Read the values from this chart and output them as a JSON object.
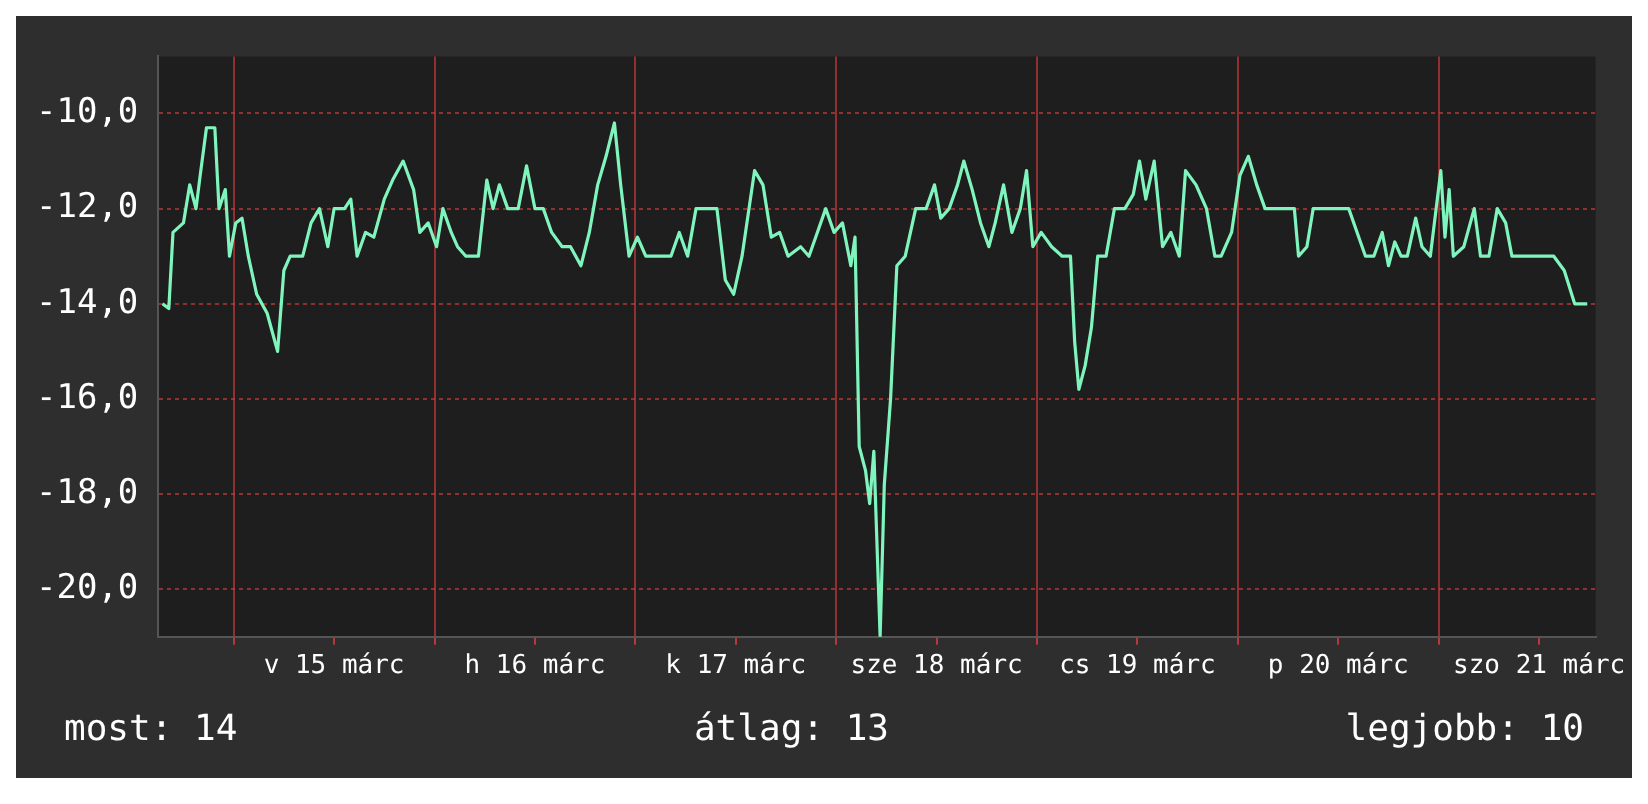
{
  "chart_data": {
    "type": "line",
    "x": [
      "--03-14T15:30",
      "--03-14T16:15",
      "--03-14T16:45",
      "--03-14T18:00",
      "--03-14T18:45",
      "--03-14T19:30",
      "--03-14T20:00",
      "--03-14T20:45",
      "--03-14T21:45",
      "--03-14T22:15",
      "--03-14T23:00",
      "--03-14T23:30",
      "--03-15T00:15",
      "--03-15T01:00",
      "--03-15T01:45",
      "--03-15T02:45",
      "--03-15T04:00",
      "--03-15T05:15",
      "--03-15T06:00",
      "--03-15T06:45",
      "--03-15T08:15",
      "--03-15T09:15",
      "--03-15T10:15",
      "--03-15T11:15",
      "--03-15T12:00",
      "--03-15T13:15",
      "--03-15T14:00",
      "--03-15T14:45",
      "--03-15T15:45",
      "--03-15T16:45",
      "--03-15T18:00",
      "--03-15T19:00",
      "--03-15T20:15",
      "--03-15T21:30",
      "--03-15T22:15",
      "--03-15T23:15",
      "--03-16T00:15",
      "--03-16T01:00",
      "--03-16T02:00",
      "--03-16T02:45",
      "--03-16T03:45",
      "--03-16T05:15",
      "--03-16T06:15",
      "--03-16T07:00",
      "--03-16T07:45",
      "--03-16T08:45",
      "--03-16T10:00",
      "--03-16T11:00",
      "--03-16T12:00",
      "--03-16T13:00",
      "--03-16T14:00",
      "--03-16T15:15",
      "--03-16T16:15",
      "--03-16T17:30",
      "--03-16T18:30",
      "--03-16T19:30",
      "--03-16T20:30",
      "--03-16T21:30",
      "--03-16T22:15",
      "--03-16T23:15",
      "--03-17T00:15",
      "--03-17T01:15",
      "--03-17T02:45",
      "--03-17T04:15",
      "--03-17T05:15",
      "--03-17T06:15",
      "--03-17T07:15",
      "--03-17T08:30",
      "--03-17T09:45",
      "--03-17T10:45",
      "--03-17T11:45",
      "--03-17T12:45",
      "--03-17T14:15",
      "--03-17T15:15",
      "--03-17T16:15",
      "--03-17T17:15",
      "--03-17T18:15",
      "--03-17T19:45",
      "--03-17T20:45",
      "--03-17T21:45",
      "--03-17T22:45",
      "--03-17T23:45",
      "--03-18T00:45",
      "--03-18T01:45",
      "--03-18T02:15",
      "--03-18T02:45",
      "--03-18T03:30",
      "--03-18T04:00",
      "--03-18T04:30",
      "--03-18T05:15",
      "--03-18T05:45",
      "--03-18T06:30",
      "--03-18T07:15",
      "--03-18T08:15",
      "--03-18T09:30",
      "--03-18T10:45",
      "--03-18T11:45",
      "--03-18T12:30",
      "--03-18T13:30",
      "--03-18T14:30",
      "--03-18T15:15",
      "--03-18T16:15",
      "--03-18T17:15",
      "--03-18T18:15",
      "--03-18T19:00",
      "--03-18T20:00",
      "--03-18T21:00",
      "--03-18T22:00",
      "--03-18T22:45",
      "--03-18T23:30",
      "--03-19T00:30",
      "--03-19T01:45",
      "--03-19T03:00",
      "--03-19T04:00",
      "--03-19T04:30",
      "--03-19T05:00",
      "--03-19T05:45",
      "--03-19T06:30",
      "--03-19T07:15",
      "--03-19T08:15",
      "--03-19T09:15",
      "--03-19T10:30",
      "--03-19T11:30",
      "--03-19T12:15",
      "--03-19T13:00",
      "--03-19T14:00",
      "--03-19T15:00",
      "--03-19T16:00",
      "--03-19T17:00",
      "--03-19T17:45",
      "--03-19T19:00",
      "--03-19T20:15",
      "--03-19T21:15",
      "--03-19T22:00",
      "--03-19T23:15",
      "--03-20T00:15",
      "--03-20T01:15",
      "--03-20T02:15",
      "--03-20T03:15",
      "--03-20T04:15",
      "--03-20T05:45",
      "--03-20T06:45",
      "--03-20T07:15",
      "--03-20T08:15",
      "--03-20T09:00",
      "--03-20T10:15",
      "--03-20T11:45",
      "--03-20T13:15",
      "--03-20T14:15",
      "--03-20T15:15",
      "--03-20T16:15",
      "--03-20T17:15",
      "--03-20T18:00",
      "--03-20T18:45",
      "--03-20T19:30",
      "--03-20T20:15",
      "--03-20T21:15",
      "--03-20T22:00",
      "--03-20T23:00",
      "--03-21T00:15",
      "--03-21T00:45",
      "--03-21T01:15",
      "--03-21T01:45",
      "--03-21T03:00",
      "--03-21T04:15",
      "--03-21T05:00",
      "--03-21T06:00",
      "--03-21T07:00",
      "--03-21T08:00",
      "--03-21T08:45",
      "--03-21T10:00",
      "--03-21T11:15",
      "--03-21T12:30",
      "--03-21T13:45",
      "--03-21T15:00",
      "--03-21T16:15",
      "--03-21T17:45"
    ],
    "series": [
      {
        "color": "#7ff5bd",
        "values": [
          -14,
          -14.1,
          -12.5,
          -12.3,
          -11.5,
          -12,
          -11.3,
          -10.3,
          -10.3,
          -12,
          -11.6,
          -13,
          -12.3,
          -12.2,
          -13,
          -13.8,
          -14.2,
          -15,
          -13.3,
          -13,
          -13,
          -12.3,
          -12,
          -12.8,
          -12,
          -12,
          -11.8,
          -13,
          -12.5,
          -12.6,
          -11.8,
          -11.4,
          -11,
          -11.6,
          -12.5,
          -12.3,
          -12.8,
          -12,
          -12.5,
          -12.8,
          -13,
          -13,
          -11.4,
          -12,
          -11.5,
          -12,
          -12,
          -11.1,
          -12,
          -12,
          -12.5,
          -12.8,
          -12.8,
          -13.2,
          -12.5,
          -11.5,
          -10.9,
          -10.2,
          -11.5,
          -13,
          -12.6,
          -13,
          -13,
          -13,
          -12.5,
          -13,
          -12,
          -12,
          -12,
          -13.5,
          -13.8,
          -13,
          -11.2,
          -11.5,
          -12.6,
          -12.5,
          -13,
          -12.8,
          -13,
          -12.5,
          -12,
          -12.5,
          -12.3,
          -13.2,
          -12.6,
          -17,
          -17.5,
          -18.2,
          -17.1,
          -21,
          -17.8,
          -16,
          -13.2,
          -13,
          -12,
          -12,
          -11.5,
          -12.2,
          -12,
          -11.5,
          -11,
          -11.6,
          -12.3,
          -12.8,
          -12.3,
          -11.5,
          -12.5,
          -12,
          -11.2,
          -12.8,
          -12.5,
          -12.8,
          -13,
          -13,
          -14.8,
          -15.8,
          -15.3,
          -14.5,
          -13,
          -13,
          -12,
          -12,
          -11.7,
          -11,
          -11.8,
          -11,
          -12.8,
          -12.5,
          -13,
          -11.2,
          -11.5,
          -12,
          -13,
          -13,
          -12.5,
          -11.3,
          -10.9,
          -11.5,
          -12,
          -12,
          -12,
          -12,
          -13,
          -12.8,
          -12,
          -12,
          -12,
          -12,
          -12.5,
          -13,
          -13,
          -12.5,
          -13.2,
          -12.7,
          -13,
          -13,
          -12.2,
          -12.8,
          -13,
          -11.2,
          -12.6,
          -11.6,
          -13,
          -12.8,
          -12,
          -13,
          -13,
          -12,
          -12.3,
          -13,
          -13,
          -13,
          -13,
          -13,
          -13.3,
          -14,
          -14
        ]
      }
    ],
    "xlim": [
      "--03-14T15:00",
      "--03-21T18:45"
    ],
    "xticks": [
      {
        "value": "--03-15T00:00",
        "label": null
      },
      {
        "value": "--03-15T12:00",
        "label": "v 15 márc"
      },
      {
        "value": "--03-16T00:00",
        "label": null
      },
      {
        "value": "--03-16T12:00",
        "label": "h 16 márc"
      },
      {
        "value": "--03-17T00:00",
        "label": null
      },
      {
        "value": "--03-17T12:00",
        "label": "k 17 márc"
      },
      {
        "value": "--03-18T00:00",
        "label": null
      },
      {
        "value": "--03-18T12:00",
        "label": "sze 18 márc"
      },
      {
        "value": "--03-19T00:00",
        "label": null
      },
      {
        "value": "--03-19T12:00",
        "label": "cs 19 márc"
      },
      {
        "value": "--03-20T00:00",
        "label": null
      },
      {
        "value": "--03-20T12:00",
        "label": "p 20 márc"
      },
      {
        "value": "--03-21T00:00",
        "label": null
      },
      {
        "value": "--03-21T12:00",
        "label": "szo 21 márc"
      }
    ],
    "ylim": [
      -21,
      -8.8
    ],
    "yticks": [
      {
        "value": -20,
        "label": "-20,0"
      },
      {
        "value": -18,
        "label": "-18,0"
      },
      {
        "value": -16,
        "label": "-16,0"
      },
      {
        "value": -14,
        "label": "-14,0"
      },
      {
        "value": -12,
        "label": "-12,0"
      },
      {
        "value": -10,
        "label": "-10,0"
      }
    ],
    "grid": true,
    "line_style": "solid",
    "annotations": [
      "most: 14",
      "átlag: 13",
      "legjobb: 10"
    ]
  }
}
